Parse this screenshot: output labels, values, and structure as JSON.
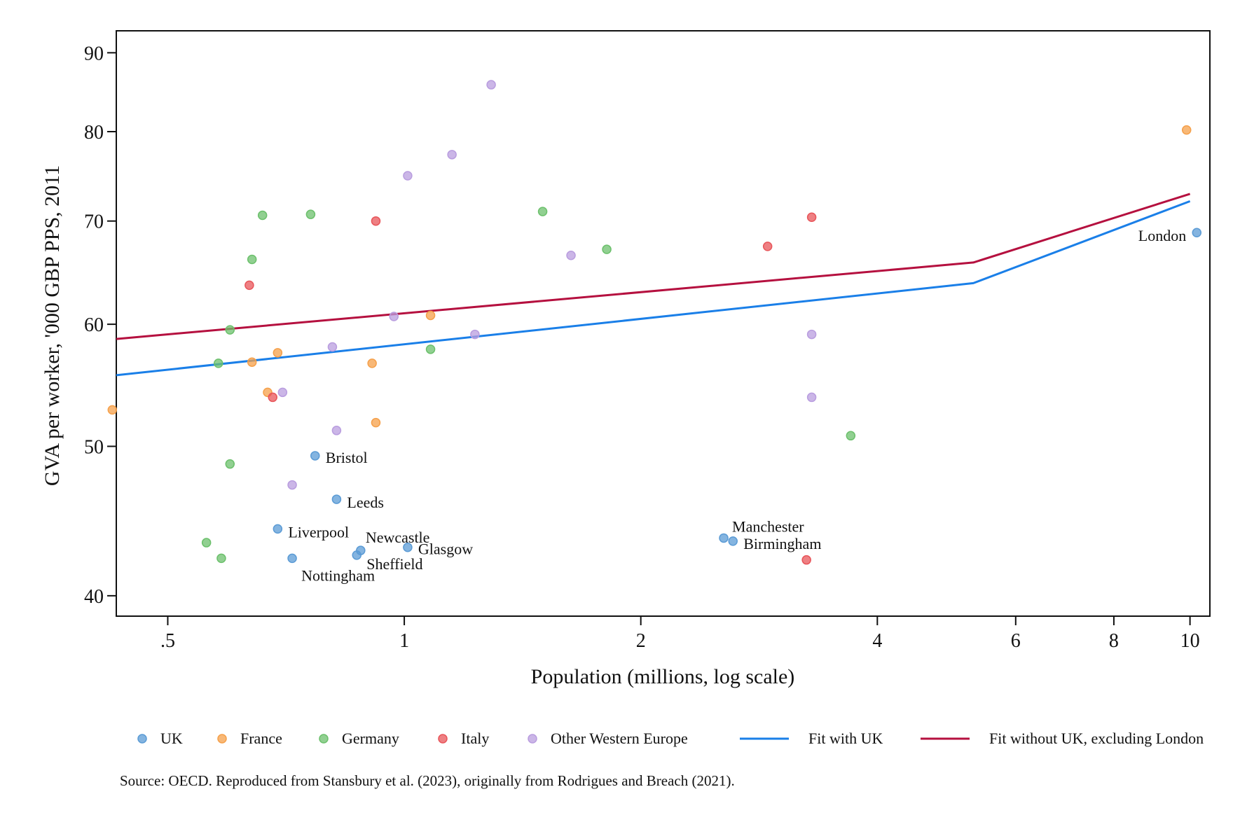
{
  "chart_data": {
    "type": "scatter",
    "xlabel": "Population (millions, log scale)",
    "ylabel": "GVA per worker, '000 GBP PPS, 2011",
    "x_scale": "log",
    "y_scale": "log",
    "xlim": [
      0.43,
      10.6
    ],
    "ylim": [
      38.8,
      93
    ],
    "x_ticks": [
      0.5,
      1,
      2,
      4,
      6,
      8,
      10
    ],
    "x_tick_labels": [
      ".5",
      "1",
      "2",
      "4",
      "6",
      "8",
      "10"
    ],
    "y_ticks": [
      40,
      50,
      60,
      70,
      80,
      90
    ],
    "y_tick_labels": [
      "40",
      "50",
      "60",
      "70",
      "80",
      "90"
    ],
    "grid": false,
    "legend_position": "bottom",
    "colors": {
      "UK": "#5b9bd5",
      "France": "#f5a04a",
      "Germany": "#6cc06c",
      "Italy": "#e8555a",
      "Other Western Europe": "#b99ddf",
      "Fit with UK": "#1a7fe8",
      "Fit without UK, excluding London": "#b5103f"
    },
    "series": [
      {
        "name": "UK",
        "points": [
          {
            "x": 0.77,
            "y": 49.3,
            "label": "Bristol"
          },
          {
            "x": 0.82,
            "y": 46.2,
            "label": "Leeds"
          },
          {
            "x": 0.69,
            "y": 44.2,
            "label": "Liverpool"
          },
          {
            "x": 0.72,
            "y": 42.3,
            "label": "Nottingham"
          },
          {
            "x": 0.88,
            "y": 42.8,
            "label": "Newcastle"
          },
          {
            "x": 0.87,
            "y": 42.5,
            "label": "Sheffield"
          },
          {
            "x": 1.01,
            "y": 43.0,
            "label": "Glasgow"
          },
          {
            "x": 2.55,
            "y": 43.6,
            "label": "Manchester"
          },
          {
            "x": 2.62,
            "y": 43.4,
            "label": "Birmingham"
          },
          {
            "x": 10.2,
            "y": 68.8,
            "label": "London"
          }
        ]
      },
      {
        "name": "France",
        "points": [
          {
            "x": 0.425,
            "y": 52.8
          },
          {
            "x": 0.64,
            "y": 56.7
          },
          {
            "x": 0.67,
            "y": 54.2
          },
          {
            "x": 0.69,
            "y": 57.5
          },
          {
            "x": 0.91,
            "y": 56.6
          },
          {
            "x": 0.92,
            "y": 51.8
          },
          {
            "x": 1.08,
            "y": 60.8
          },
          {
            "x": 9.9,
            "y": 80.2
          }
        ]
      },
      {
        "name": "Germany",
        "points": [
          {
            "x": 0.56,
            "y": 43.3
          },
          {
            "x": 0.585,
            "y": 42.3
          },
          {
            "x": 0.58,
            "y": 56.6
          },
          {
            "x": 0.6,
            "y": 59.5
          },
          {
            "x": 0.6,
            "y": 48.7
          },
          {
            "x": 0.64,
            "y": 66.1
          },
          {
            "x": 0.66,
            "y": 70.6
          },
          {
            "x": 0.76,
            "y": 70.7
          },
          {
            "x": 1.08,
            "y": 57.8
          },
          {
            "x": 1.5,
            "y": 71.0
          },
          {
            "x": 1.81,
            "y": 67.1
          },
          {
            "x": 3.7,
            "y": 50.8
          }
        ]
      },
      {
        "name": "Italy",
        "points": [
          {
            "x": 0.635,
            "y": 63.6
          },
          {
            "x": 0.68,
            "y": 53.8
          },
          {
            "x": 0.92,
            "y": 70.0
          },
          {
            "x": 2.9,
            "y": 67.4
          },
          {
            "x": 3.3,
            "y": 70.4
          },
          {
            "x": 3.25,
            "y": 42.2
          }
        ]
      },
      {
        "name": "Other Western Europe",
        "points": [
          {
            "x": 0.7,
            "y": 54.2
          },
          {
            "x": 0.72,
            "y": 47.2
          },
          {
            "x": 0.81,
            "y": 58.0
          },
          {
            "x": 0.82,
            "y": 51.2
          },
          {
            "x": 0.97,
            "y": 60.7
          },
          {
            "x": 1.01,
            "y": 74.9
          },
          {
            "x": 1.15,
            "y": 77.3
          },
          {
            "x": 1.23,
            "y": 59.1
          },
          {
            "x": 1.29,
            "y": 85.8
          },
          {
            "x": 1.63,
            "y": 66.5
          },
          {
            "x": 3.3,
            "y": 59.1
          },
          {
            "x": 3.3,
            "y": 53.8
          }
        ]
      }
    ],
    "fit_lines": [
      {
        "name": "Fit with UK",
        "x": [
          0.43,
          5.3,
          10.0
        ],
        "y": [
          55.6,
          63.8,
          72.1
        ]
      },
      {
        "name": "Fit without UK, excluding London",
        "x": [
          0.43,
          5.3,
          10.0
        ],
        "y": [
          58.7,
          65.8,
          72.9
        ]
      }
    ],
    "legend": [
      {
        "label": "UK",
        "kind": "marker"
      },
      {
        "label": "France",
        "kind": "marker"
      },
      {
        "label": "Germany",
        "kind": "marker"
      },
      {
        "label": "Italy",
        "kind": "marker"
      },
      {
        "label": "Other Western Europe",
        "kind": "marker"
      },
      {
        "label": "Fit with UK",
        "kind": "line"
      },
      {
        "label": "Fit without UK, excluding London",
        "kind": "line"
      }
    ],
    "note": "Source: OECD. Reproduced from Stansbury et al. (2023), originally from Rodrigues and Breach (2021)."
  }
}
